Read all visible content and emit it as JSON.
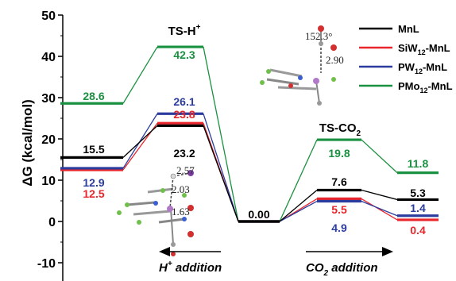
{
  "chart_data": {
    "type": "line",
    "ylabel": "ΔG (kcal/mol)",
    "ylim": [
      -10,
      50
    ],
    "yticks": [
      -10,
      0,
      10,
      20,
      30,
      40,
      50
    ],
    "states": [
      {
        "name": "initial"
      },
      {
        "name": "TS-H",
        "label_main": "TS-H",
        "label_sup": "+"
      },
      {
        "name": "intermediate"
      },
      {
        "name": "TS-CO2",
        "label_main": "TS-CO",
        "label_sub": "2"
      },
      {
        "name": "product"
      }
    ],
    "series": [
      {
        "name": "MnL",
        "color": "#000000",
        "values": [
          15.5,
          23.2,
          0.0,
          7.6,
          5.3
        ],
        "labels": [
          "15.5",
          "23.2",
          "0.00",
          "7.6",
          "5.3"
        ]
      },
      {
        "name": "SiW12-MnL",
        "name_parts": [
          "SiW",
          "12",
          "-MnL"
        ],
        "color": "#e8262b",
        "values": [
          12.5,
          23.8,
          0.0,
          5.5,
          0.4
        ],
        "labels": [
          "12.5",
          "23.8",
          "",
          "5.5",
          "0.4"
        ]
      },
      {
        "name": "PW12-MnL",
        "name_parts": [
          "PW",
          "12",
          "-MnL"
        ],
        "color": "#2b3c9e",
        "values": [
          12.9,
          26.1,
          0.0,
          4.9,
          1.4
        ],
        "labels": [
          "12.9",
          "26.1",
          "",
          "4.9",
          "1.4"
        ]
      },
      {
        "name": "PMo12-MnL",
        "name_parts": [
          "PMo",
          "12",
          "-MnL"
        ],
        "color": "#1a9140",
        "values": [
          28.6,
          42.3,
          0.0,
          19.8,
          11.8
        ],
        "labels": [
          "28.6",
          "42.3",
          "",
          "19.8",
          "11.8"
        ]
      }
    ],
    "annotations": {
      "h_addition": {
        "main": "H",
        "sup": "+",
        "rest": " addition"
      },
      "co2_addition": {
        "main": "CO",
        "sub": "2",
        "rest": " addition"
      },
      "ts_h_distances": [
        "2.57",
        "2.03",
        "1.63"
      ],
      "ts_co2_values": [
        "152.3°",
        "2.90"
      ]
    },
    "legend": "top-right"
  }
}
